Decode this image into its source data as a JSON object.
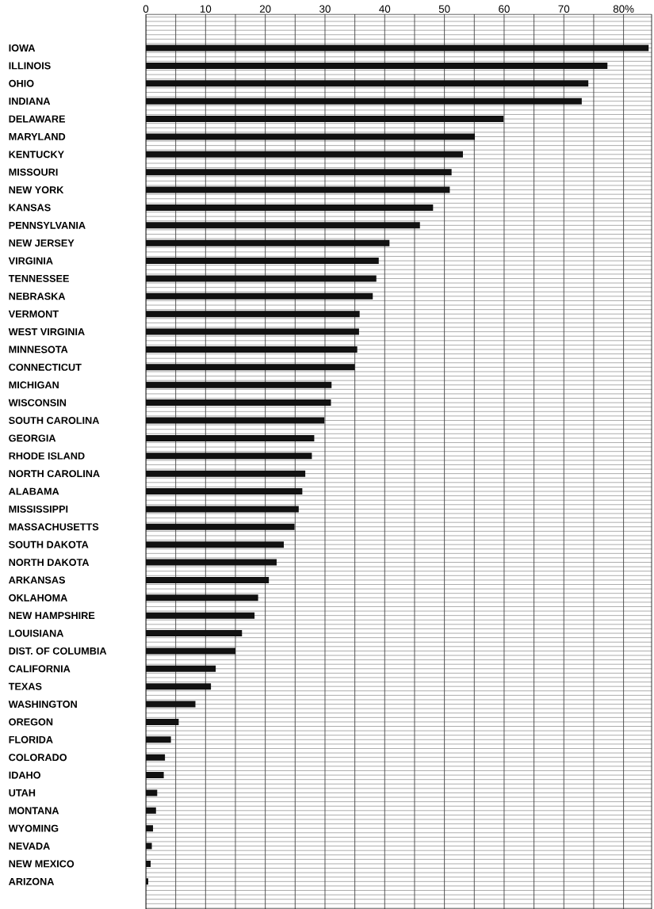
{
  "chart_data": {
    "type": "bar",
    "orientation": "horizontal",
    "categories": [
      "IOWA",
      "ILLINOIS",
      "OHIO",
      "INDIANA",
      "DELAWARE",
      "MARYLAND",
      "KENTUCKY",
      "MISSOURI",
      "NEW YORK",
      "KANSAS",
      "PENNSYLVANIA",
      "NEW JERSEY",
      "VIRGINIA",
      "TENNESSEE",
      "NEBRASKA",
      "VERMONT",
      "WEST VIRGINIA",
      "MINNESOTA",
      "CONNECTICUT",
      "MICHIGAN",
      "WISCONSIN",
      "SOUTH CAROLINA",
      "GEORGIA",
      "RHODE ISLAND",
      "NORTH CAROLINA",
      "ALABAMA",
      "MISSISSIPPI",
      "MASSACHUSETTS",
      "SOUTH DAKOTA",
      "NORTH DAKOTA",
      "ARKANSAS",
      "OKLAHOMA",
      "NEW HAMPSHIRE",
      "LOUISIANA",
      "DIST. OF COLUMBIA",
      "CALIFORNIA",
      "TEXAS",
      "WASHINGTON",
      "OREGON",
      "FLORIDA",
      "COLORADO",
      "IDAHO",
      "UTAH",
      "MONTANA",
      "WYOMING",
      "NEVADA",
      "NEW MEXICO",
      "ARIZONA"
    ],
    "values": [
      84.2,
      77.3,
      74.1,
      73.0,
      59.9,
      55.1,
      53.1,
      51.2,
      50.9,
      48.1,
      45.9,
      40.8,
      39.0,
      38.6,
      38.0,
      35.8,
      35.7,
      35.4,
      35.0,
      31.1,
      31.0,
      29.9,
      28.2,
      27.8,
      26.7,
      26.2,
      25.6,
      24.9,
      23.1,
      21.9,
      20.6,
      18.8,
      18.2,
      16.1,
      15.0,
      11.7,
      10.9,
      8.3,
      5.5,
      4.2,
      3.2,
      3.0,
      1.9,
      1.7,
      1.2,
      1.0,
      0.8,
      0.4
    ],
    "color": "#111111",
    "xlim": [
      0,
      84.7
    ],
    "xticks": [
      0,
      {
        "value": 5,
        "label": null
      },
      10,
      {
        "value": 15,
        "label": null
      },
      20,
      {
        "value": 25,
        "label": null
      },
      30,
      {
        "value": 35,
        "label": null
      },
      40,
      {
        "value": 45,
        "label": null
      },
      50,
      {
        "value": 55,
        "label": null
      },
      60,
      {
        "value": 65,
        "label": null
      },
      70,
      {
        "value": 75,
        "label": null
      },
      {
        "value": 80,
        "label": "80%"
      }
    ],
    "grid": true
  }
}
